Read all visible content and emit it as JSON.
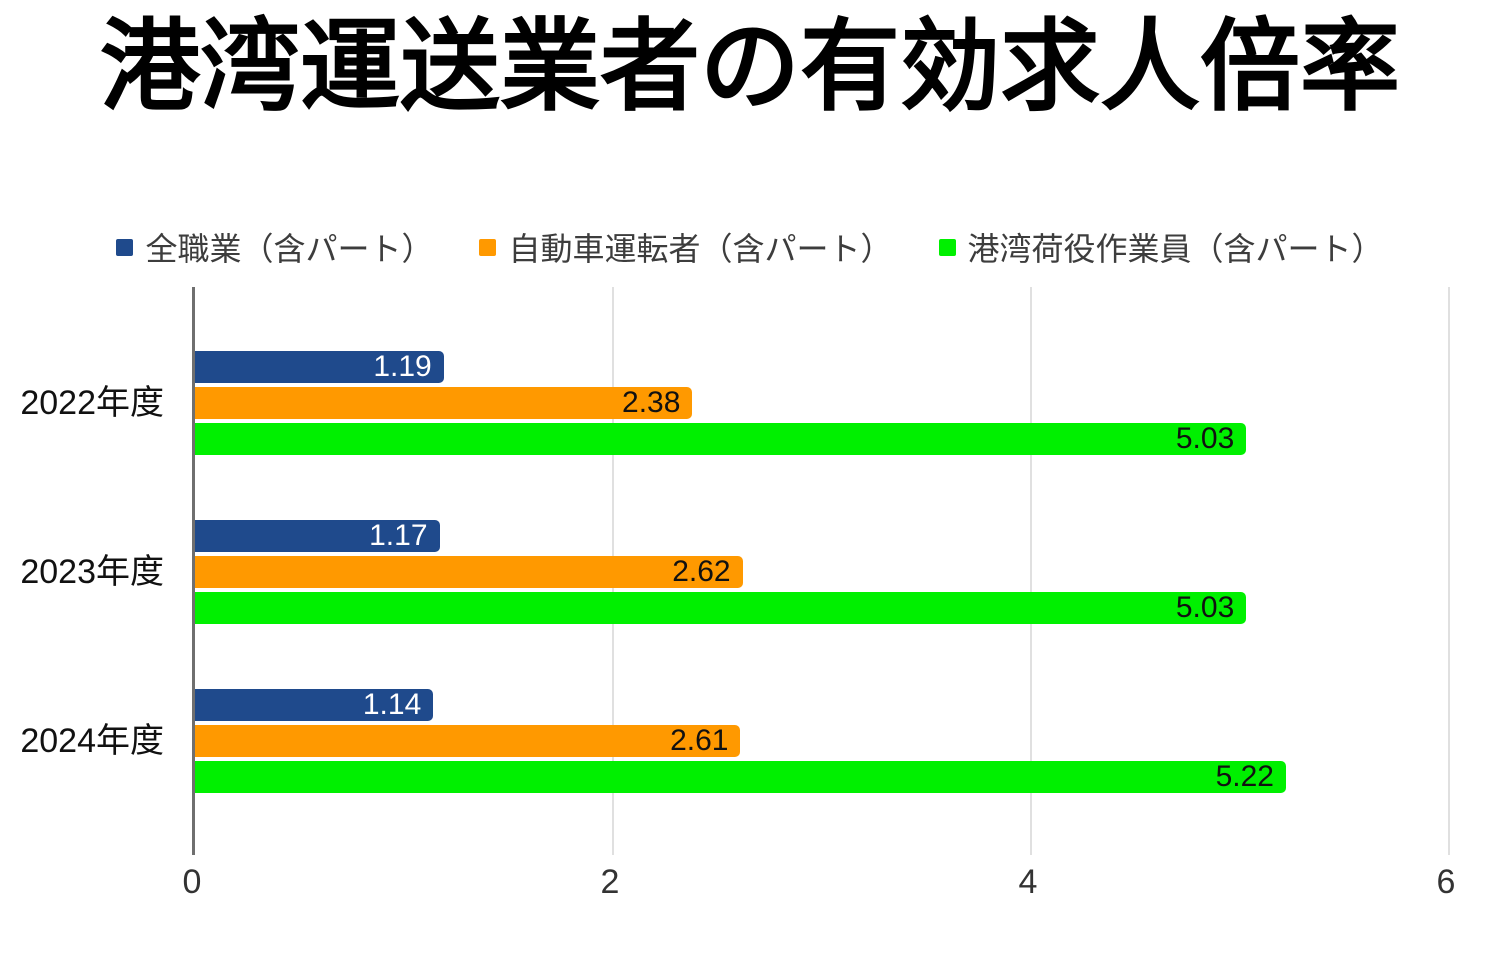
{
  "chart_data": {
    "type": "bar",
    "orientation": "horizontal",
    "title": "港湾運送業者の有効求人倍率",
    "categories": [
      "2022年度",
      "2023年度",
      "2024年度"
    ],
    "series": [
      {
        "name": "全職業（含パート）",
        "color": "#1f4a8c",
        "label_color": "#ffffff",
        "values": [
          1.19,
          1.17,
          1.14
        ]
      },
      {
        "name": "自動車運転者（含パート）",
        "color": "#ff9900",
        "label_color": "#111111",
        "values": [
          2.38,
          2.62,
          2.61
        ]
      },
      {
        "name": "港湾荷役作業員（含パート）",
        "color": "#00f000",
        "label_color": "#111111",
        "values": [
          5.03,
          5.03,
          5.22
        ]
      }
    ],
    "xlim": [
      0,
      6
    ],
    "xticks": [
      0,
      2,
      4,
      6
    ],
    "grid": true,
    "legend_position": "top"
  },
  "style": {
    "axis_line_color": "#6f6f6f",
    "gridline_color": "#e0e0e0",
    "background": "#ffffff"
  }
}
